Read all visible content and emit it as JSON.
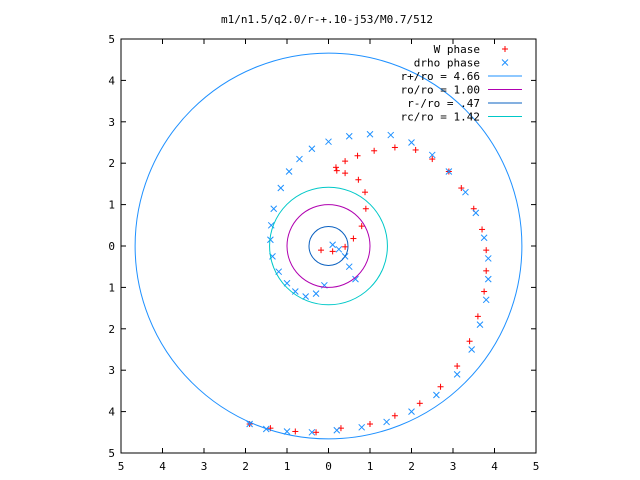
{
  "chart_data": {
    "type": "scatter",
    "title": "m1/n1.5/q2.0/r-+.10-j53/M0.7/512",
    "xlabel": "",
    "ylabel": "",
    "xlim": [
      -5,
      5
    ],
    "ylim": [
      -5,
      5
    ],
    "xtick_values": [
      -5,
      -4,
      -3,
      -2,
      -1,
      0,
      1,
      2,
      3,
      4,
      5
    ],
    "ytick_values": [
      -5,
      -4,
      -3,
      -2,
      -1,
      0,
      1,
      2,
      3,
      4,
      5
    ],
    "xtick_labels": [
      "5",
      "4",
      "3",
      "2",
      "1",
      "0",
      "1",
      "2",
      "3",
      "4",
      "5"
    ],
    "ytick_labels": [
      "5",
      "4",
      "3",
      "2",
      "1",
      "0",
      "1",
      "2",
      "3",
      "4",
      "5"
    ],
    "grid": false,
    "legend_position": "top-right",
    "series": [
      {
        "name": "W phase",
        "kind": "points",
        "marker": "+",
        "color": "#ff0000",
        "points": [
          [
            -0.18,
            -0.1
          ],
          [
            0.1,
            -0.13
          ],
          [
            0.4,
            -0.02
          ],
          [
            0.6,
            0.18
          ],
          [
            0.8,
            0.48
          ],
          [
            0.9,
            0.9
          ],
          [
            0.88,
            1.3
          ],
          [
            0.72,
            1.6
          ],
          [
            0.4,
            1.76
          ],
          [
            0.2,
            1.82
          ],
          [
            0.18,
            1.9
          ],
          [
            0.4,
            2.05
          ],
          [
            0.7,
            2.18
          ],
          [
            1.1,
            2.3
          ],
          [
            1.6,
            2.38
          ],
          [
            2.1,
            2.32
          ],
          [
            2.5,
            2.1
          ],
          [
            2.9,
            1.8
          ],
          [
            3.2,
            1.4
          ],
          [
            3.5,
            0.9
          ],
          [
            3.7,
            0.4
          ],
          [
            3.8,
            -0.1
          ],
          [
            3.8,
            -0.6
          ],
          [
            3.75,
            -1.1
          ],
          [
            3.6,
            -1.7
          ],
          [
            3.4,
            -2.3
          ],
          [
            3.1,
            -2.9
          ],
          [
            2.7,
            -3.4
          ],
          [
            2.2,
            -3.8
          ],
          [
            1.6,
            -4.1
          ],
          [
            1.0,
            -4.3
          ],
          [
            0.3,
            -4.4
          ],
          [
            -0.3,
            -4.5
          ],
          [
            -0.8,
            -4.48
          ],
          [
            -1.4,
            -4.4
          ],
          [
            -1.9,
            -4.3
          ]
        ]
      },
      {
        "name": "drho phase",
        "kind": "points",
        "marker": "x",
        "color": "#1e90ff",
        "points": [
          [
            0.65,
            -0.8
          ],
          [
            0.5,
            -0.5
          ],
          [
            0.4,
            -0.25
          ],
          [
            0.25,
            -0.08
          ],
          [
            0.1,
            0.03
          ],
          [
            -0.1,
            -0.95
          ],
          [
            -0.3,
            -1.15
          ],
          [
            -0.55,
            -1.22
          ],
          [
            -0.8,
            -1.1
          ],
          [
            -1.0,
            -0.9
          ],
          [
            -1.2,
            -0.62
          ],
          [
            -1.35,
            -0.25
          ],
          [
            -1.4,
            0.15
          ],
          [
            -1.38,
            0.5
          ],
          [
            -1.32,
            0.9
          ],
          [
            -1.15,
            1.4
          ],
          [
            -0.95,
            1.8
          ],
          [
            -0.7,
            2.1
          ],
          [
            -0.4,
            2.35
          ],
          [
            0.0,
            2.52
          ],
          [
            0.5,
            2.65
          ],
          [
            1.0,
            2.7
          ],
          [
            1.5,
            2.68
          ],
          [
            2.0,
            2.5
          ],
          [
            2.5,
            2.2
          ],
          [
            2.9,
            1.8
          ],
          [
            3.3,
            1.3
          ],
          [
            3.55,
            0.8
          ],
          [
            3.75,
            0.2
          ],
          [
            3.85,
            -0.3
          ],
          [
            3.85,
            -0.8
          ],
          [
            3.8,
            -1.3
          ],
          [
            3.65,
            -1.9
          ],
          [
            3.45,
            -2.5
          ],
          [
            3.1,
            -3.1
          ],
          [
            2.6,
            -3.6
          ],
          [
            2.0,
            -4.0
          ],
          [
            1.4,
            -4.25
          ],
          [
            0.8,
            -4.38
          ],
          [
            0.2,
            -4.45
          ],
          [
            -0.4,
            -4.5
          ],
          [
            -1.0,
            -4.48
          ],
          [
            -1.5,
            -4.42
          ],
          [
            -1.9,
            -4.3
          ]
        ]
      },
      {
        "name": "r+/ro = 4.66",
        "kind": "circle",
        "radius": 4.66,
        "color": "#1e90ff"
      },
      {
        "name": "ro/ro = 1.00",
        "kind": "circle",
        "radius": 1.0,
        "color": "#b000b0"
      },
      {
        "name": "r-/ro = .47",
        "kind": "circle",
        "radius": 0.47,
        "color": "#0a60c0"
      },
      {
        "name": "rc/ro = 1.42",
        "kind": "circle",
        "radius": 1.42,
        "color": "#00c8c8"
      }
    ]
  }
}
